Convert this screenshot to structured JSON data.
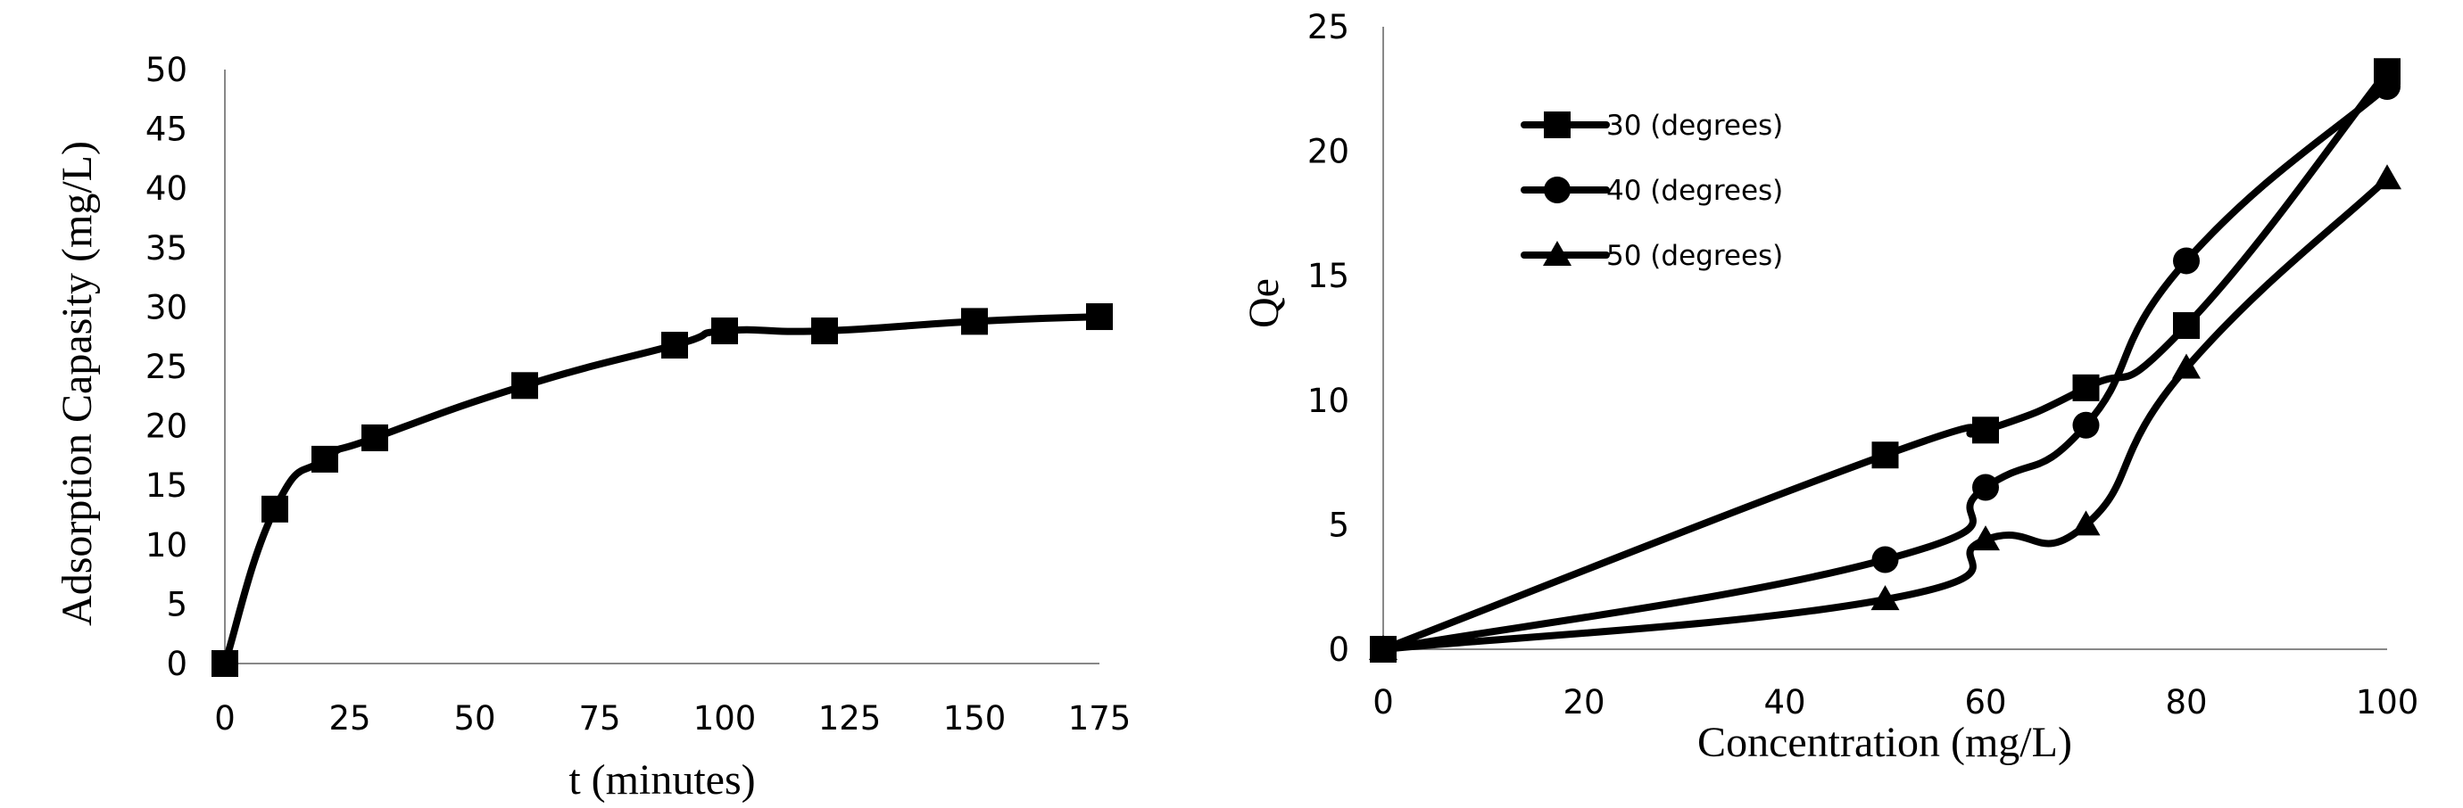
{
  "chart_data": [
    {
      "type": "line",
      "title": "",
      "xlabel": "t (minutes)",
      "ylabel": "Adsorption Capasity (mg/L)",
      "xlim": [
        0,
        175
      ],
      "ylim": [
        0,
        50
      ],
      "x_ticks": [
        "0",
        "25",
        "50",
        "75",
        "100",
        "125",
        "150",
        "175"
      ],
      "y_ticks": [
        "0",
        "5",
        "10",
        "15",
        "20",
        "25",
        "30",
        "35",
        "40",
        "45",
        "50"
      ],
      "grid": false,
      "smooth": true,
      "series": [
        {
          "marker": "square",
          "color": "#000000",
          "x": [
            0,
            10,
            20,
            30,
            60,
            90,
            100,
            120,
            150,
            175
          ],
          "y": [
            0,
            13,
            17.2,
            19,
            23.4,
            26.8,
            28,
            28,
            28.8,
            29.2
          ]
        }
      ]
    },
    {
      "type": "line",
      "title": "",
      "xlabel": "Concentration (mg/L)",
      "ylabel": "Qe",
      "xlim": [
        0,
        100
      ],
      "ylim": [
        0,
        25
      ],
      "x_ticks": [
        "0",
        "20",
        "40",
        "60",
        "80",
        "100"
      ],
      "y_ticks": [
        "0",
        "5",
        "10",
        "15",
        "20",
        "25"
      ],
      "grid": false,
      "smooth": true,
      "legend_position": "top-left",
      "series": [
        {
          "name": "30 (degrees)",
          "marker": "square",
          "color": "#000000",
          "x": [
            0,
            50,
            60,
            70,
            80,
            100
          ],
          "y": [
            0,
            7.8,
            8.8,
            10.5,
            13,
            23.2
          ]
        },
        {
          "name": "40 (degrees)",
          "marker": "circle",
          "color": "#000000",
          "x": [
            0,
            50,
            60,
            70,
            80,
            100
          ],
          "y": [
            0,
            3.6,
            6.5,
            9,
            15.6,
            22.6
          ]
        },
        {
          "name": "50 (degrees)",
          "marker": "triangle",
          "color": "#000000",
          "x": [
            0,
            50,
            60,
            70,
            80,
            100
          ],
          "y": [
            0,
            2,
            4.4,
            5,
            11.3,
            18.9
          ]
        }
      ]
    }
  ]
}
